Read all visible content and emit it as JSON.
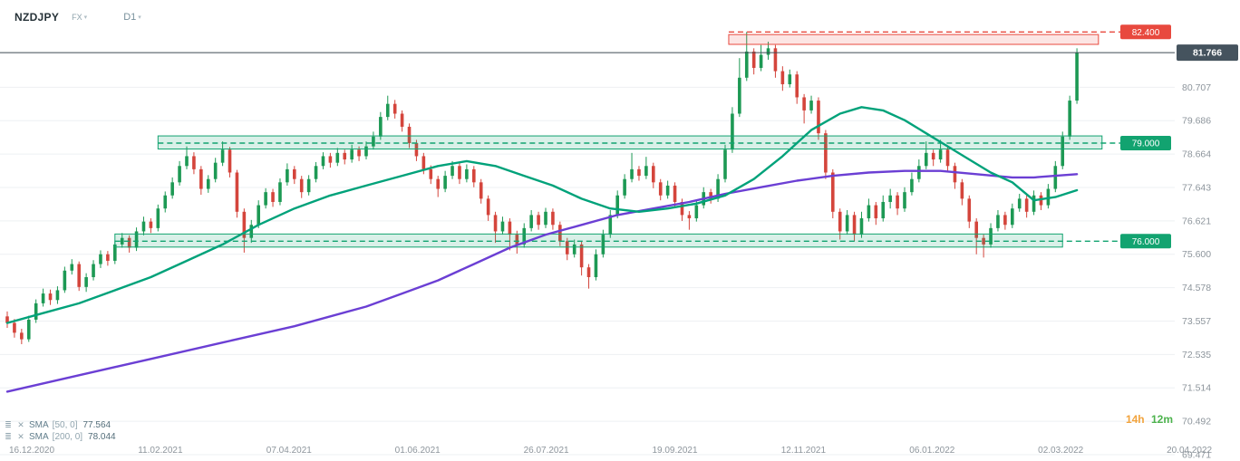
{
  "header": {
    "symbol": "NZDJPY",
    "market": "FX",
    "timeframe": "D1"
  },
  "icons": {
    "caret": "▾",
    "menu": "≣",
    "close": "✕"
  },
  "indicators": [
    {
      "name": "SMA",
      "params": "[50, 0]",
      "value": "77.564"
    },
    {
      "name": "SMA",
      "params": "[200, 0]",
      "value": "78.044"
    }
  ],
  "countdown": {
    "hours": "14h",
    "minutes": "12m"
  },
  "chart_data": {
    "type": "candlestick",
    "title": "NZDJPY D1",
    "x_labels": [
      "16.12.2020",
      "11.02.2021",
      "07.04.2021",
      "01.06.2021",
      "26.07.2021",
      "19.09.2021",
      "12.11.2021",
      "06.01.2022",
      "02.03.2022",
      "20.04.2022"
    ],
    "y_ticks": [
      "80.707",
      "79.686",
      "78.664",
      "77.643",
      "76.621",
      "75.600",
      "74.578",
      "73.557",
      "72.535",
      "71.514",
      "70.492",
      "69.471"
    ],
    "ylim": [
      69.3,
      82.75
    ],
    "grid": true,
    "current_price": {
      "label": "81.766",
      "value": 81.766
    },
    "colors": {
      "up": "#1d9954",
      "down": "#d4453c",
      "grid": "#eef0f3",
      "axis_text": "#8d959c",
      "price_line": "#3d4a53",
      "current_badge": "#45535e"
    },
    "levels": [
      {
        "label": "82.400",
        "price": 82.4,
        "type": "resistance",
        "band": [
          82.02,
          82.32
        ],
        "start_index": 100.5,
        "end_index": 152,
        "color": "#e8493e",
        "fill": "rgba(232,73,62,0.14)"
      },
      {
        "label": "79.000",
        "price": 79.0,
        "type": "support",
        "band": [
          78.82,
          79.22
        ],
        "start_index": 21,
        "end_index": 152.5,
        "color": "#12a370",
        "fill": "rgba(18,163,112,0.16)"
      },
      {
        "label": "76.000",
        "price": 76.0,
        "type": "support",
        "band": [
          75.82,
          76.22
        ],
        "start_index": 15,
        "end_index": 147,
        "color": "#12a370",
        "fill": "rgba(18,163,112,0.16)"
      }
    ],
    "sma50": {
      "name": "SMA 50",
      "value": 77.564,
      "color": "#00a27a",
      "points": [
        [
          0,
          73.5
        ],
        [
          5,
          73.8
        ],
        [
          10,
          74.1
        ],
        [
          15,
          74.5
        ],
        [
          20,
          74.9
        ],
        [
          25,
          75.4
        ],
        [
          30,
          75.9
        ],
        [
          35,
          76.5
        ],
        [
          40,
          77.0
        ],
        [
          45,
          77.4
        ],
        [
          50,
          77.7
        ],
        [
          55,
          78.0
        ],
        [
          60,
          78.3
        ],
        [
          64,
          78.45
        ],
        [
          68,
          78.3
        ],
        [
          72,
          78.0
        ],
        [
          76,
          77.7
        ],
        [
          80,
          77.3
        ],
        [
          84,
          77.0
        ],
        [
          88,
          76.9
        ],
        [
          92,
          77.0
        ],
        [
          96,
          77.15
        ],
        [
          100,
          77.4
        ],
        [
          104,
          77.9
        ],
        [
          108,
          78.6
        ],
        [
          112,
          79.4
        ],
        [
          116,
          79.9
        ],
        [
          119,
          80.1
        ],
        [
          122,
          80.0
        ],
        [
          125,
          79.7
        ],
        [
          128,
          79.3
        ],
        [
          131,
          78.9
        ],
        [
          134,
          78.5
        ],
        [
          137,
          78.1
        ],
        [
          140,
          77.8
        ],
        [
          143,
          77.25
        ],
        [
          146,
          77.35
        ],
        [
          149,
          77.56
        ]
      ]
    },
    "sma200": {
      "name": "SMA 200",
      "value": 78.044,
      "color": "#6b3fd4",
      "points": [
        [
          0,
          71.4
        ],
        [
          10,
          71.9
        ],
        [
          20,
          72.4
        ],
        [
          30,
          72.9
        ],
        [
          40,
          73.4
        ],
        [
          50,
          74.0
        ],
        [
          55,
          74.4
        ],
        [
          60,
          74.8
        ],
        [
          65,
          75.3
        ],
        [
          70,
          75.8
        ],
        [
          75,
          76.2
        ],
        [
          80,
          76.5
        ],
        [
          85,
          76.8
        ],
        [
          90,
          77.0
        ],
        [
          95,
          77.2
        ],
        [
          100,
          77.45
        ],
        [
          105,
          77.65
        ],
        [
          110,
          77.85
        ],
        [
          115,
          78.0
        ],
        [
          120,
          78.1
        ],
        [
          125,
          78.15
        ],
        [
          130,
          78.15
        ],
        [
          135,
          78.05
        ],
        [
          140,
          77.95
        ],
        [
          143,
          77.95
        ],
        [
          146,
          78.0
        ],
        [
          149,
          78.05
        ]
      ]
    },
    "candles": [
      [
        73.7,
        73.85,
        73.35,
        73.5
      ],
      [
        73.5,
        73.62,
        73.05,
        73.2
      ],
      [
        73.2,
        73.32,
        72.85,
        73.0
      ],
      [
        73.0,
        73.72,
        72.92,
        73.6
      ],
      [
        73.6,
        74.22,
        73.5,
        74.1
      ],
      [
        74.1,
        74.55,
        74.0,
        74.4
      ],
      [
        74.4,
        74.52,
        74.05,
        74.2
      ],
      [
        74.2,
        74.62,
        74.08,
        74.5
      ],
      [
        74.5,
        75.22,
        74.42,
        75.1
      ],
      [
        75.1,
        75.45,
        74.98,
        75.3
      ],
      [
        75.3,
        75.38,
        74.48,
        74.6
      ],
      [
        74.6,
        75.02,
        74.45,
        74.9
      ],
      [
        74.9,
        75.42,
        74.8,
        75.3
      ],
      [
        75.3,
        75.72,
        75.18,
        75.6
      ],
      [
        75.6,
        75.7,
        75.25,
        75.4
      ],
      [
        75.4,
        76.02,
        75.3,
        75.9
      ],
      [
        75.9,
        76.25,
        75.8,
        76.1
      ],
      [
        76.1,
        76.18,
        75.65,
        75.8
      ],
      [
        75.8,
        76.42,
        75.7,
        76.3
      ],
      [
        76.3,
        76.75,
        76.18,
        76.6
      ],
      [
        76.6,
        76.7,
        76.25,
        76.4
      ],
      [
        76.4,
        77.12,
        76.3,
        77.0
      ],
      [
        77.0,
        77.52,
        76.88,
        77.4
      ],
      [
        77.4,
        77.95,
        77.3,
        77.8
      ],
      [
        77.8,
        78.45,
        77.7,
        78.3
      ],
      [
        78.3,
        78.9,
        78.2,
        78.6
      ],
      [
        78.6,
        78.72,
        78.05,
        78.2
      ],
      [
        78.2,
        78.3,
        77.42,
        77.6
      ],
      [
        77.6,
        78.02,
        77.48,
        77.9
      ],
      [
        77.9,
        78.55,
        77.8,
        78.4
      ],
      [
        78.4,
        79.05,
        78.3,
        78.8
      ],
      [
        78.8,
        78.88,
        77.95,
        78.1
      ],
      [
        78.1,
        78.18,
        76.72,
        76.9
      ],
      [
        76.9,
        77.0,
        75.65,
        76.1
      ],
      [
        76.1,
        76.65,
        75.95,
        76.5
      ],
      [
        76.5,
        77.25,
        76.4,
        77.1
      ],
      [
        77.1,
        77.62,
        77.0,
        77.5
      ],
      [
        77.5,
        77.6,
        77.05,
        77.2
      ],
      [
        77.2,
        77.92,
        77.1,
        77.8
      ],
      [
        77.8,
        78.38,
        77.7,
        78.2
      ],
      [
        78.2,
        78.3,
        77.75,
        77.9
      ],
      [
        77.9,
        78.0,
        77.32,
        77.5
      ],
      [
        77.5,
        78.02,
        77.4,
        77.9
      ],
      [
        77.9,
        78.42,
        77.8,
        78.3
      ],
      [
        78.3,
        78.72,
        78.2,
        78.6
      ],
      [
        78.6,
        78.7,
        78.25,
        78.4
      ],
      [
        78.4,
        78.85,
        78.3,
        78.7
      ],
      [
        78.7,
        78.8,
        78.35,
        78.5
      ],
      [
        78.5,
        78.95,
        78.4,
        78.8
      ],
      [
        78.8,
        78.9,
        78.45,
        78.6
      ],
      [
        78.6,
        79.05,
        78.5,
        78.9
      ],
      [
        78.9,
        79.35,
        78.8,
        79.2
      ],
      [
        79.2,
        79.95,
        79.1,
        79.8
      ],
      [
        79.8,
        80.45,
        79.7,
        80.2
      ],
      [
        80.2,
        80.32,
        79.75,
        79.9
      ],
      [
        79.9,
        80.0,
        79.35,
        79.5
      ],
      [
        79.5,
        79.6,
        78.85,
        79.0
      ],
      [
        79.0,
        79.1,
        78.45,
        78.6
      ],
      [
        78.6,
        78.7,
        78.05,
        78.2
      ],
      [
        78.2,
        78.32,
        77.75,
        77.9
      ],
      [
        77.9,
        78.0,
        77.35,
        77.6
      ],
      [
        77.6,
        78.15,
        77.5,
        78.0
      ],
      [
        78.0,
        78.45,
        77.9,
        78.3
      ],
      [
        78.3,
        78.4,
        77.75,
        77.9
      ],
      [
        77.9,
        78.35,
        77.8,
        78.2
      ],
      [
        78.2,
        78.3,
        77.65,
        77.8
      ],
      [
        77.8,
        77.9,
        77.15,
        77.3
      ],
      [
        77.3,
        77.4,
        76.62,
        76.8
      ],
      [
        76.8,
        76.9,
        75.95,
        76.3
      ],
      [
        76.3,
        76.75,
        76.2,
        76.6
      ],
      [
        76.6,
        76.7,
        75.72,
        76.2
      ],
      [
        76.2,
        76.32,
        75.62,
        75.9
      ],
      [
        75.9,
        76.55,
        75.8,
        76.4
      ],
      [
        76.4,
        76.95,
        76.3,
        76.8
      ],
      [
        76.8,
        76.9,
        76.35,
        76.5
      ],
      [
        76.5,
        77.02,
        76.4,
        76.9
      ],
      [
        76.9,
        77.0,
        76.35,
        76.5
      ],
      [
        76.5,
        76.6,
        75.85,
        76.0
      ],
      [
        76.0,
        76.1,
        75.42,
        75.6
      ],
      [
        75.6,
        76.05,
        75.5,
        75.9
      ],
      [
        75.9,
        76.0,
        74.95,
        75.2
      ],
      [
        75.2,
        75.3,
        74.55,
        74.9
      ],
      [
        74.9,
        75.75,
        74.8,
        75.6
      ],
      [
        75.6,
        76.35,
        75.5,
        76.2
      ],
      [
        76.2,
        76.95,
        76.1,
        76.8
      ],
      [
        76.8,
        77.55,
        76.7,
        77.4
      ],
      [
        77.4,
        78.05,
        77.3,
        77.9
      ],
      [
        77.9,
        78.7,
        77.8,
        78.2
      ],
      [
        78.2,
        78.3,
        77.85,
        78.0
      ],
      [
        78.0,
        78.58,
        77.9,
        78.3
      ],
      [
        78.3,
        78.4,
        77.62,
        77.8
      ],
      [
        77.8,
        77.9,
        77.25,
        77.4
      ],
      [
        77.4,
        77.85,
        77.3,
        77.7
      ],
      [
        77.7,
        77.8,
        77.05,
        77.2
      ],
      [
        77.2,
        77.3,
        76.62,
        76.8
      ],
      [
        76.8,
        76.92,
        76.35,
        76.7
      ],
      [
        76.7,
        77.25,
        76.6,
        77.1
      ],
      [
        77.1,
        77.65,
        77.0,
        77.5
      ],
      [
        77.5,
        77.6,
        77.15,
        77.3
      ],
      [
        77.3,
        78.05,
        77.2,
        77.9
      ],
      [
        77.9,
        78.95,
        77.8,
        78.8
      ],
      [
        78.8,
        80.1,
        78.7,
        79.9
      ],
      [
        79.9,
        81.6,
        79.8,
        81.0
      ],
      [
        81.0,
        82.4,
        80.9,
        81.8
      ],
      [
        81.8,
        81.9,
        81.1,
        81.3
      ],
      [
        81.3,
        82.0,
        81.2,
        81.7
      ],
      [
        81.7,
        82.1,
        81.55,
        81.9
      ],
      [
        81.9,
        82.0,
        81.0,
        81.2
      ],
      [
        81.2,
        81.35,
        80.6,
        80.8
      ],
      [
        80.8,
        81.25,
        80.7,
        81.1
      ],
      [
        81.1,
        81.2,
        80.2,
        80.4
      ],
      [
        80.4,
        80.5,
        79.6,
        80.0
      ],
      [
        80.0,
        80.45,
        79.9,
        80.3
      ],
      [
        80.3,
        80.4,
        79.1,
        79.3
      ],
      [
        79.3,
        79.4,
        77.9,
        78.1
      ],
      [
        78.1,
        78.2,
        76.7,
        76.9
      ],
      [
        76.9,
        77.0,
        76.05,
        76.3
      ],
      [
        76.3,
        76.95,
        76.2,
        76.8
      ],
      [
        76.8,
        76.9,
        76.0,
        76.2
      ],
      [
        76.2,
        76.9,
        76.1,
        76.7
      ],
      [
        76.7,
        77.3,
        76.6,
        77.1
      ],
      [
        77.1,
        77.2,
        76.5,
        76.7
      ],
      [
        76.7,
        77.4,
        76.6,
        77.2
      ],
      [
        77.2,
        77.6,
        77.0,
        77.4
      ],
      [
        77.4,
        77.5,
        76.8,
        77.0
      ],
      [
        77.0,
        77.65,
        76.9,
        77.5
      ],
      [
        77.5,
        78.1,
        77.4,
        77.9
      ],
      [
        77.9,
        78.5,
        77.8,
        78.3
      ],
      [
        78.3,
        79.05,
        78.2,
        78.7
      ],
      [
        78.7,
        78.8,
        78.3,
        78.5
      ],
      [
        78.5,
        79.1,
        78.4,
        78.8
      ],
      [
        78.8,
        78.9,
        78.1,
        78.3
      ],
      [
        78.3,
        78.4,
        77.6,
        77.8
      ],
      [
        77.8,
        77.9,
        77.1,
        77.3
      ],
      [
        77.3,
        77.4,
        76.4,
        76.6
      ],
      [
        76.6,
        76.7,
        75.6,
        76.1
      ],
      [
        76.1,
        76.2,
        75.5,
        75.9
      ],
      [
        75.9,
        76.55,
        75.8,
        76.4
      ],
      [
        76.4,
        76.95,
        76.3,
        76.8
      ],
      [
        76.8,
        76.9,
        76.35,
        76.5
      ],
      [
        76.5,
        77.15,
        76.4,
        77.0
      ],
      [
        77.0,
        77.45,
        76.9,
        77.3
      ],
      [
        77.3,
        77.4,
        76.72,
        76.9
      ],
      [
        76.9,
        77.55,
        76.8,
        77.4
      ],
      [
        77.4,
        77.5,
        76.95,
        77.1
      ],
      [
        77.1,
        77.75,
        77.0,
        77.6
      ],
      [
        77.6,
        78.45,
        77.5,
        78.3
      ],
      [
        78.3,
        79.35,
        78.2,
        79.2
      ],
      [
        79.2,
        80.45,
        79.1,
        80.3
      ],
      [
        80.3,
        81.9,
        80.2,
        81.77
      ]
    ]
  }
}
